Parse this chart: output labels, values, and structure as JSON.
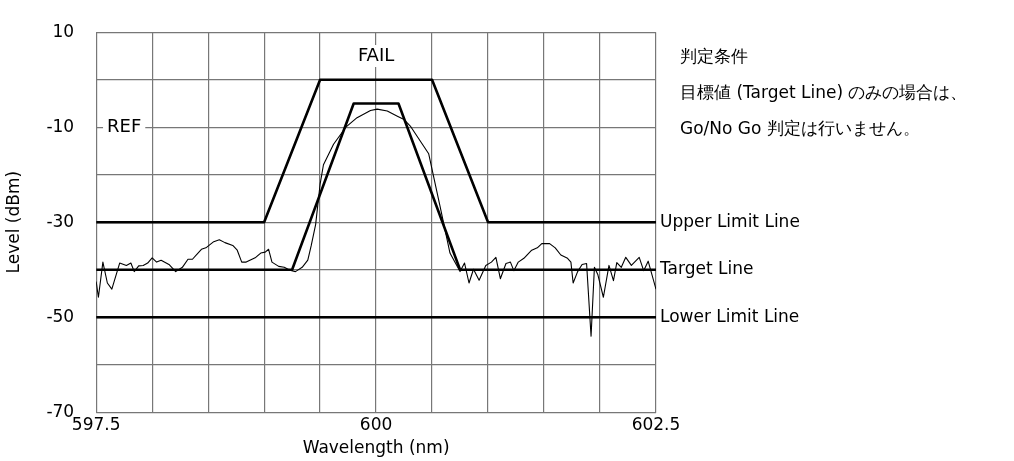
{
  "chart_data": {
    "type": "line",
    "xlabel": "Wavelength (nm)",
    "ylabel": "Level (dBm)",
    "xlim": [
      597.5,
      602.5
    ],
    "ylim": [
      -70,
      10
    ],
    "xticks": [
      597.5,
      {
        "value": 598,
        "label": null
      },
      {
        "value": 598.5,
        "label": null
      },
      {
        "value": 599,
        "label": null
      },
      {
        "value": 599.5,
        "label": null
      },
      600,
      {
        "value": 600.5,
        "label": null
      },
      {
        "value": 601,
        "label": null
      },
      {
        "value": 601.5,
        "label": null
      },
      {
        "value": 602,
        "label": null
      },
      602.5
    ],
    "yticks": [
      10,
      {
        "value": 0,
        "label": null
      },
      -10,
      {
        "value": -20,
        "label": null
      },
      -30,
      {
        "value": -40,
        "label": null
      },
      -50,
      {
        "value": -60,
        "label": null
      },
      -70
    ],
    "grid": true,
    "legend": false,
    "marker": "none",
    "line_style": "solid",
    "annotations": [
      "FAIL",
      "REF",
      "判定条件",
      "目標値 (Target Line) のみの場合は、",
      "Go/No Go 判定は行いません。"
    ],
    "series": [
      {
        "name": "Upper Limit Line",
        "color": "#000000",
        "x": [
          597.5,
          599.0,
          599.5,
          600.5,
          601.0,
          602.5
        ],
        "values": [
          -30,
          -30,
          0,
          0,
          -30,
          -30
        ]
      },
      {
        "name": "Target Line",
        "color": "#000000",
        "x": [
          597.5,
          599.25,
          599.8,
          600.2,
          600.75,
          602.5
        ],
        "values": [
          -40,
          -40,
          -5,
          -5,
          -40,
          -40
        ]
      },
      {
        "name": "Lower Limit Line",
        "color": "#000000",
        "x": [
          597.5,
          602.5
        ],
        "values": [
          -50,
          -50
        ]
      },
      {
        "color": "#000000",
        "x": [
          597.5,
          597.52,
          597.56,
          597.6,
          597.64,
          597.71,
          597.77,
          597.81,
          597.84,
          597.88,
          597.92,
          597.96,
          598.0,
          598.04,
          598.08,
          598.15,
          598.21,
          598.27,
          598.32,
          598.36,
          598.44,
          598.48,
          598.55,
          598.6,
          598.65,
          598.72,
          598.76,
          598.8,
          598.84,
          598.92,
          598.97,
          599.01,
          599.04,
          599.07,
          599.13,
          599.18,
          599.23,
          599.28,
          599.34,
          599.39,
          599.42,
          599.46,
          599.5,
          599.53,
          599.62,
          599.73,
          599.83,
          599.95,
          600.01,
          600.1,
          600.19,
          600.25,
          600.31,
          600.47,
          600.57,
          600.66,
          600.75,
          600.79,
          600.83,
          600.87,
          600.92,
          600.98,
          601.03,
          601.07,
          601.11,
          601.16,
          601.2,
          601.23,
          601.27,
          601.32,
          601.39,
          601.44,
          601.48,
          601.55,
          601.6,
          601.65,
          601.71,
          601.74,
          601.76,
          601.8,
          601.84,
          601.88,
          601.92,
          601.95,
          601.98,
          602.03,
          602.08,
          602.12,
          602.15,
          602.19,
          602.23,
          602.28,
          602.35,
          602.39,
          602.43,
          602.5
        ],
        "values": [
          -42.5,
          -45.8,
          -38.4,
          -42.8,
          -44.1,
          -38.6,
          -39.1,
          -38.6,
          -40.4,
          -39.2,
          -39.1,
          -38.6,
          -37.5,
          -38.4,
          -38.0,
          -38.9,
          -40.4,
          -39.5,
          -37.8,
          -37.8,
          -35.7,
          -35.4,
          -34.1,
          -33.7,
          -34.3,
          -34.9,
          -35.9,
          -38.4,
          -38.4,
          -37.5,
          -36.5,
          -36.3,
          -35.7,
          -38.4,
          -39.3,
          -39.5,
          -40.1,
          -40.4,
          -39.5,
          -38.0,
          -35.0,
          -30.5,
          -22,
          -17.9,
          -13.6,
          -10,
          -8.0,
          -6.5,
          -6.2,
          -6.6,
          -7.7,
          -8.4,
          -9.9,
          -15.6,
          -26.5,
          -36.5,
          -40.4,
          -38.6,
          -42.8,
          -39.9,
          -42.2,
          -39.1,
          -38.4,
          -37.4,
          -41.9,
          -38.7,
          -38.4,
          -40.2,
          -38.4,
          -37.6,
          -35.9,
          -35.4,
          -34.5,
          -34.5,
          -35.4,
          -36.9,
          -37.6,
          -38.4,
          -42.8,
          -40.4,
          -38.9,
          -38.7,
          -54.0,
          -39.5,
          -41.0,
          -45.8,
          -39.1,
          -42.3,
          -38.5,
          -39.5,
          -37.4,
          -39.1,
          -37.4,
          -40.2,
          -38.2,
          -44.1
        ]
      }
    ]
  }
}
